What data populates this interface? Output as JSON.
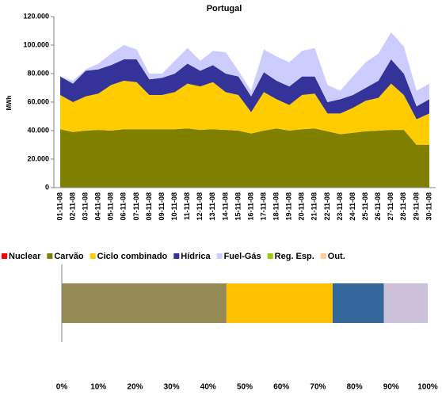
{
  "chart_data": [
    {
      "type": "stacked_area",
      "title": "Portugal",
      "y_label": "MWh",
      "categories": [
        "01-11-08",
        "02-11-08",
        "03-11-08",
        "04-11-08",
        "05-11-08",
        "06-11-08",
        "07-11-08",
        "08-11-08",
        "09-11-08",
        "10-11-08",
        "11-11-08",
        "12-11-08",
        "13-11-08",
        "14-11-08",
        "15-11-08",
        "16-11-08",
        "17-11-08",
        "18-11-08",
        "19-11-08",
        "20-11-08",
        "21-11-08",
        "22-11-08",
        "23-11-08",
        "24-11-08",
        "25-11-08",
        "26-11-08",
        "27-11-08",
        "28-11-08",
        "29-11-08",
        "30-11-08"
      ],
      "ylim": [
        0,
        120000
      ],
      "yticks": [
        0,
        {
          "value": 20000,
          "label": "20.000"
        },
        {
          "value": 40000,
          "label": "40.000"
        },
        {
          "value": 60000,
          "label": "60.000"
        },
        {
          "value": 80000,
          "label": "80.000"
        },
        {
          "value": 100000,
          "label": "100.000"
        },
        {
          "value": 120000,
          "label": "120.000"
        }
      ],
      "series": [
        {
          "name": "Nuclear",
          "color": "#ff0000",
          "values": [
            null,
            null,
            null,
            null,
            null,
            null,
            null,
            null,
            null,
            null,
            null,
            null,
            null,
            null,
            null,
            null,
            null,
            null,
            null,
            null,
            null,
            null,
            null,
            null,
            null,
            null,
            null,
            null,
            null,
            null
          ]
        },
        {
          "name": "Carvão",
          "color": "#808000",
          "values": [
            41000,
            39000,
            40000,
            40500,
            40000,
            41000,
            41000,
            41000,
            41000,
            41000,
            41500,
            40500,
            41000,
            40500,
            40000,
            38000,
            40000,
            41500,
            40000,
            41000,
            41500,
            39500,
            37500,
            38500,
            39500,
            40000,
            40500,
            40500,
            30000,
            30000
          ]
        },
        {
          "name": "Ciclo combinado",
          "color": "#ffcc00",
          "values": [
            24000,
            21000,
            24000,
            25500,
            32000,
            34000,
            33000,
            24000,
            24000,
            26000,
            31500,
            30500,
            33000,
            26500,
            25000,
            15000,
            27000,
            20500,
            18000,
            24000,
            24500,
            12500,
            14500,
            17500,
            21500,
            23000,
            32500,
            24500,
            18000,
            22000
          ]
        },
        {
          "name": "Hídrica",
          "color": "#333399",
          "values": [
            13000,
            13000,
            18000,
            17000,
            14000,
            15000,
            16000,
            11000,
            12000,
            13000,
            14000,
            11000,
            12000,
            13000,
            13000,
            11000,
            14000,
            13000,
            13000,
            13000,
            12000,
            8000,
            10000,
            9000,
            9000,
            12000,
            17000,
            15000,
            9000,
            10000
          ]
        },
        {
          "name": "Fuel-Gás",
          "color": "#ccccff",
          "values": [
            0,
            2000,
            1000,
            4000,
            8000,
            10000,
            7000,
            4000,
            3000,
            9000,
            11000,
            7000,
            10000,
            15000,
            4000,
            4000,
            16000,
            17000,
            17000,
            18000,
            20000,
            12000,
            6000,
            13000,
            18000,
            19000,
            19000,
            19000,
            11000,
            11000
          ]
        },
        {
          "name": "Reg. Esp.",
          "color": "#99cc00",
          "values": [
            null,
            null,
            null,
            null,
            null,
            null,
            null,
            null,
            null,
            null,
            null,
            null,
            null,
            null,
            null,
            null,
            null,
            null,
            null,
            null,
            null,
            null,
            null,
            null,
            null,
            null,
            null,
            null,
            null,
            null
          ]
        },
        {
          "name": "Out.",
          "color": "#ffcc99",
          "values": [
            null,
            null,
            null,
            null,
            null,
            null,
            null,
            null,
            null,
            null,
            null,
            null,
            null,
            null,
            null,
            null,
            null,
            null,
            null,
            null,
            null,
            null,
            null,
            null,
            null,
            null,
            null,
            null,
            null,
            null
          ]
        }
      ]
    },
    {
      "type": "stacked_hbar",
      "xlim": [
        0,
        100
      ],
      "xticks": [
        {
          "value": 0,
          "label": "0%"
        },
        {
          "value": 10,
          "label": "10%"
        },
        {
          "value": 20,
          "label": "20%"
        },
        {
          "value": 30,
          "label": "30%"
        },
        {
          "value": 40,
          "label": "40%"
        },
        {
          "value": 50,
          "label": "50%"
        },
        {
          "value": 60,
          "label": "60%"
        },
        {
          "value": 70,
          "label": "70%"
        },
        {
          "value": 80,
          "label": "80%"
        },
        {
          "value": 90,
          "label": "90%"
        },
        {
          "value": 100,
          "label": "100%"
        }
      ],
      "series": [
        {
          "color": "#948a54",
          "values": [
            45
          ]
        },
        {
          "color": "#ffc000",
          "values": [
            29
          ]
        },
        {
          "color": "#336699",
          "values": [
            14
          ]
        },
        {
          "color": "#ccc0da",
          "values": [
            12
          ]
        }
      ]
    }
  ]
}
